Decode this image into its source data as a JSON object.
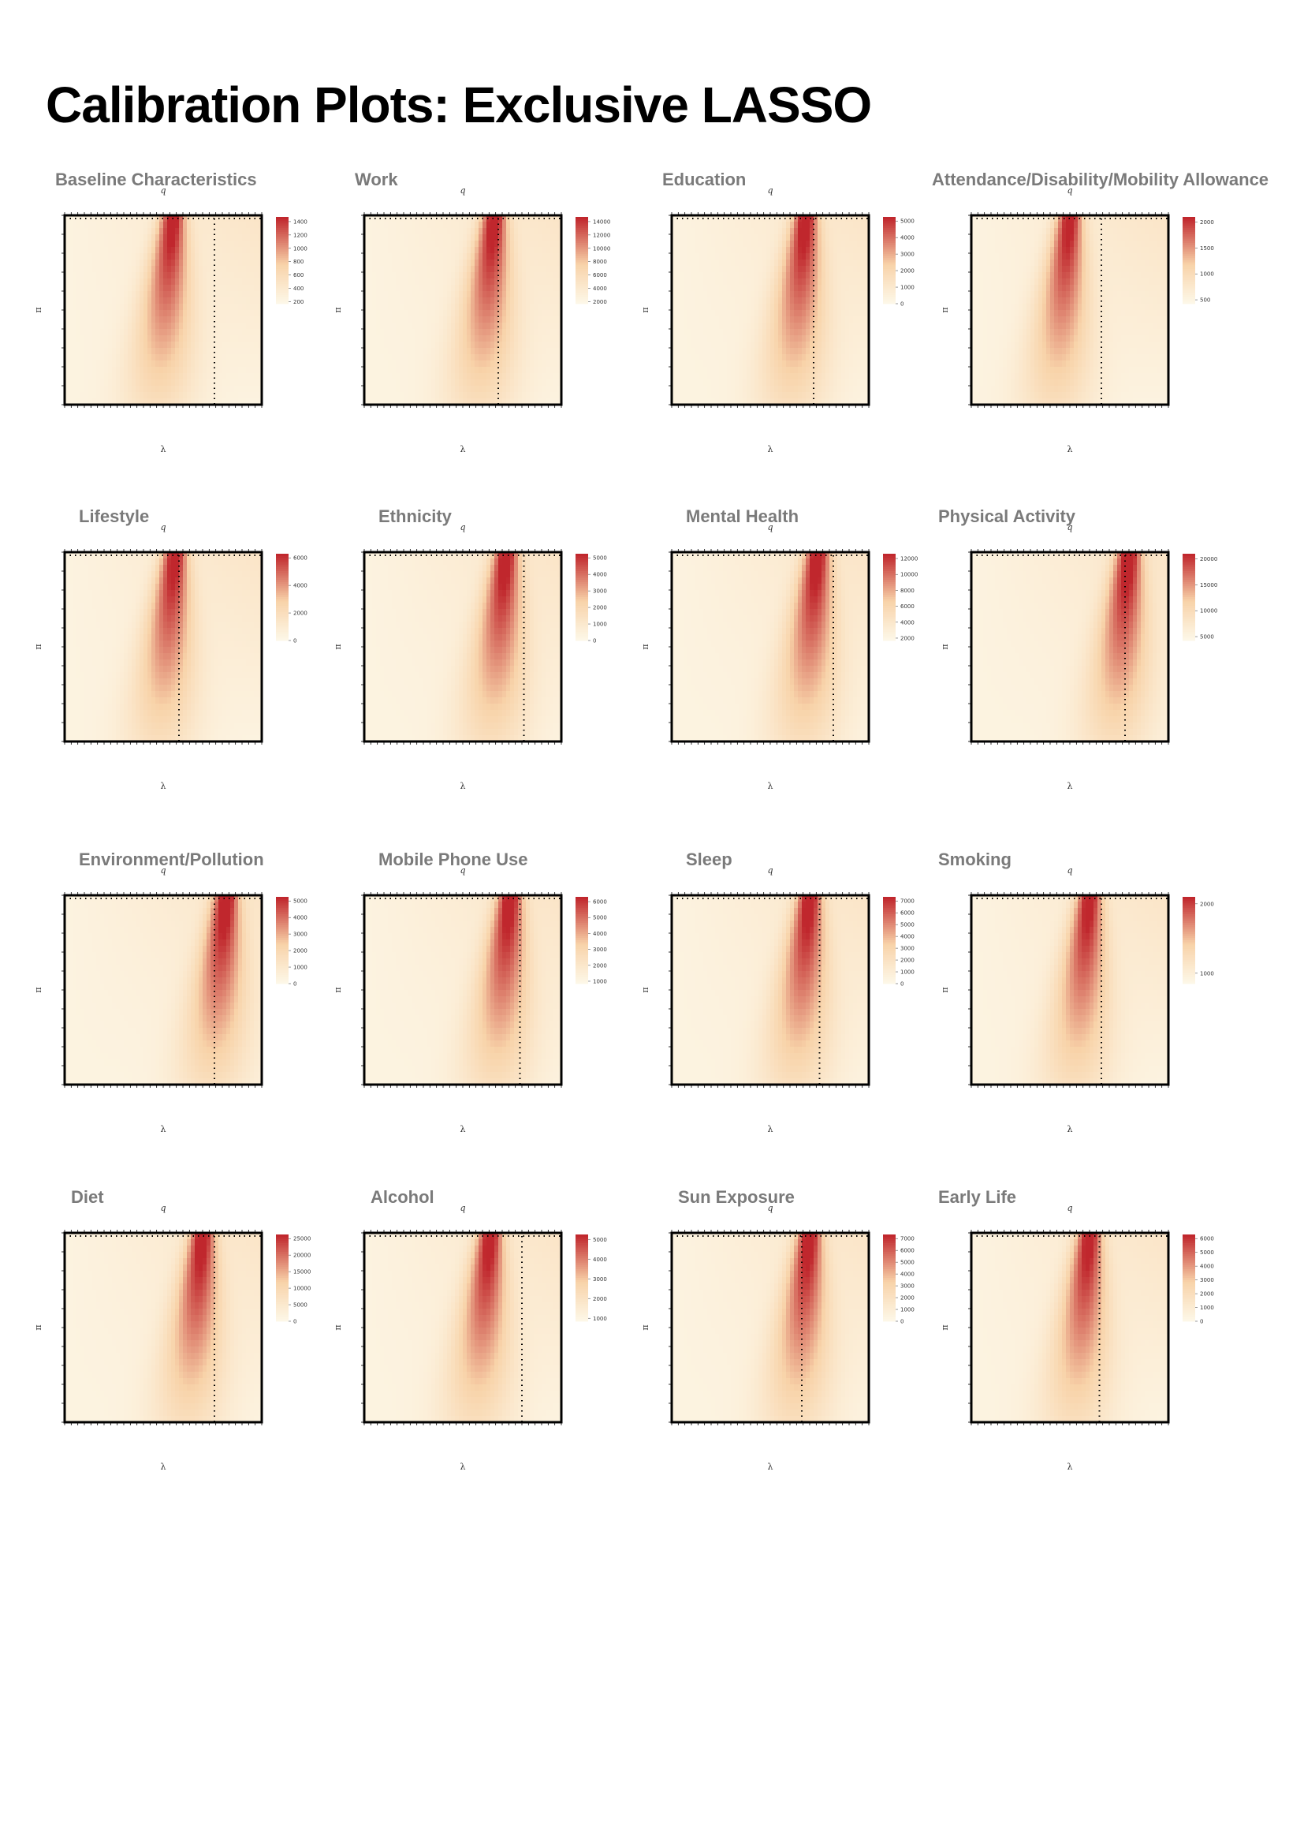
{
  "page": {
    "title": "Calibration Plots: Exclusive LASSO"
  },
  "axis_symbols": {
    "top": "q",
    "bottom": "λ",
    "left": "π"
  },
  "colors": {
    "low": "#fdf7e7",
    "mid": "#f8d3a9",
    "high": "#c0272d",
    "frame": "#000000"
  },
  "chart_data": [
    {
      "type": "heatmap",
      "title": "Baseline Characteristics",
      "xlabel": "λ",
      "ylabel": "π",
      "top_label": "q",
      "colorbar_ticks": [
        200,
        400,
        600,
        800,
        1000,
        1200,
        1400
      ],
      "selected_lambda_fraction": 0.76,
      "hotspot_fraction": 0.55,
      "y_range": [
        0.6,
        0.9
      ]
    },
    {
      "type": "heatmap",
      "title": "Work",
      "xlabel": "λ",
      "ylabel": "π",
      "top_label": "q",
      "colorbar_ticks": [
        2000,
        4000,
        6000,
        8000,
        10000,
        12000,
        14000
      ],
      "selected_lambda_fraction": 0.68,
      "hotspot_fraction": 0.66,
      "y_range": [
        0.6,
        0.9
      ]
    },
    {
      "type": "heatmap",
      "title": "Education",
      "xlabel": "λ",
      "ylabel": "π",
      "top_label": "q",
      "colorbar_ticks": [
        0,
        1000,
        2000,
        3000,
        4000,
        5000
      ],
      "selected_lambda_fraction": 0.72,
      "hotspot_fraction": 0.68,
      "y_range": [
        0.6,
        0.9
      ]
    },
    {
      "type": "heatmap",
      "title": "Attendance/Disability/Mobility Allowance",
      "xlabel": "λ",
      "ylabel": "π",
      "top_label": "q",
      "colorbar_ticks": [
        500,
        1000,
        1500,
        2000
      ],
      "selected_lambda_fraction": 0.66,
      "hotspot_fraction": 0.5,
      "y_range": [
        0.6,
        0.9
      ]
    },
    {
      "type": "heatmap",
      "title": "Lifestyle",
      "xlabel": "λ",
      "ylabel": "π",
      "top_label": "q",
      "colorbar_ticks": [
        0,
        2000,
        4000,
        6000
      ],
      "selected_lambda_fraction": 0.58,
      "hotspot_fraction": 0.56,
      "y_range": [
        0.6,
        0.9
      ]
    },
    {
      "type": "heatmap",
      "title": "Ethnicity",
      "xlabel": "λ",
      "ylabel": "π",
      "top_label": "q",
      "colorbar_ticks": [
        0,
        1000,
        2000,
        3000,
        4000,
        5000
      ],
      "selected_lambda_fraction": 0.81,
      "hotspot_fraction": 0.72,
      "y_range": [
        0.6,
        0.9
      ]
    },
    {
      "type": "heatmap",
      "title": "Mental Health",
      "xlabel": "λ",
      "ylabel": "π",
      "top_label": "q",
      "colorbar_ticks": [
        2000,
        4000,
        6000,
        8000,
        10000,
        12000
      ],
      "selected_lambda_fraction": 0.82,
      "hotspot_fraction": 0.74,
      "y_range": [
        0.6,
        0.9
      ]
    },
    {
      "type": "heatmap",
      "title": "Physical Activity",
      "xlabel": "λ",
      "ylabel": "π",
      "top_label": "q",
      "colorbar_ticks": [
        5000,
        10000,
        15000,
        20000
      ],
      "selected_lambda_fraction": 0.78,
      "hotspot_fraction": 0.8,
      "y_range": [
        0.6,
        0.9
      ]
    },
    {
      "type": "heatmap",
      "title": "Environment/Pollution",
      "xlabel": "λ",
      "ylabel": "π",
      "top_label": "q",
      "colorbar_ticks": [
        0,
        1000,
        2000,
        3000,
        4000,
        5000
      ],
      "selected_lambda_fraction": 0.76,
      "hotspot_fraction": 0.82,
      "y_range": [
        0.6,
        0.9
      ]
    },
    {
      "type": "heatmap",
      "title": "Mobile Phone Use",
      "xlabel": "λ",
      "ylabel": "π",
      "top_label": "q",
      "colorbar_ticks": [
        1000,
        2000,
        3000,
        4000,
        5000,
        6000
      ],
      "selected_lambda_fraction": 0.79,
      "hotspot_fraction": 0.74,
      "y_range": [
        0.6,
        0.9
      ]
    },
    {
      "type": "heatmap",
      "title": "Sleep",
      "xlabel": "λ",
      "ylabel": "π",
      "top_label": "q",
      "colorbar_ticks": [
        0,
        1000,
        2000,
        3000,
        4000,
        5000,
        6000,
        7000
      ],
      "selected_lambda_fraction": 0.75,
      "hotspot_fraction": 0.7,
      "y_range": [
        0.6,
        0.9
      ]
    },
    {
      "type": "heatmap",
      "title": "Smoking",
      "xlabel": "λ",
      "ylabel": "π",
      "top_label": "q",
      "colorbar_ticks": [
        1000,
        2000
      ],
      "selected_lambda_fraction": 0.66,
      "hotspot_fraction": 0.6,
      "y_range": [
        0.6,
        0.9
      ]
    },
    {
      "type": "heatmap",
      "title": "Diet",
      "xlabel": "λ",
      "ylabel": "π",
      "top_label": "q",
      "colorbar_ticks": [
        0,
        5000,
        10000,
        15000,
        20000,
        25000
      ],
      "selected_lambda_fraction": 0.76,
      "hotspot_fraction": 0.7,
      "y_range": [
        0.6,
        0.9
      ]
    },
    {
      "type": "heatmap",
      "title": "Alcohol",
      "xlabel": "λ",
      "ylabel": "π",
      "top_label": "q",
      "colorbar_ticks": [
        1000,
        2000,
        3000,
        4000,
        5000
      ],
      "selected_lambda_fraction": 0.8,
      "hotspot_fraction": 0.64,
      "y_range": [
        0.6,
        0.9
      ]
    },
    {
      "type": "heatmap",
      "title": "Sun Exposure",
      "xlabel": "λ",
      "ylabel": "π",
      "top_label": "q",
      "colorbar_ticks": [
        0,
        1000,
        2000,
        3000,
        4000,
        5000,
        6000,
        7000
      ],
      "selected_lambda_fraction": 0.66,
      "hotspot_fraction": 0.7,
      "y_range": [
        0.6,
        0.9
      ]
    },
    {
      "type": "heatmap",
      "title": "Early Life",
      "xlabel": "λ",
      "ylabel": "π",
      "top_label": "q",
      "colorbar_ticks": [
        0,
        1000,
        2000,
        3000,
        4000,
        5000,
        6000
      ],
      "selected_lambda_fraction": 0.65,
      "hotspot_fraction": 0.6,
      "y_range": [
        0.6,
        0.9
      ]
    }
  ]
}
